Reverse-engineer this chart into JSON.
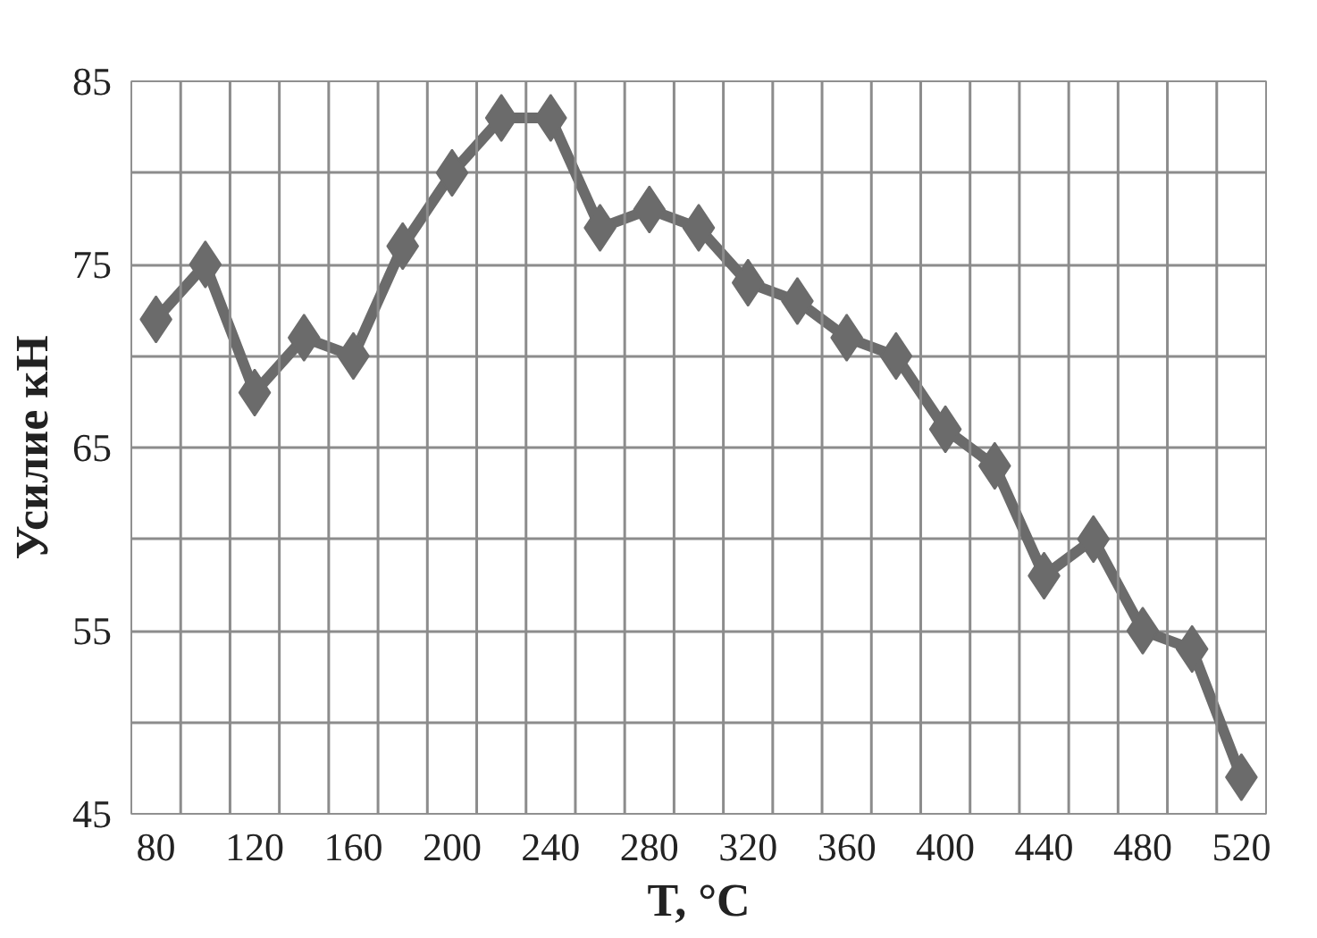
{
  "chart_data": {
    "type": "line",
    "xlabel": "T, °C",
    "ylabel": "Усилие кН",
    "categories": [
      "80",
      null,
      "120",
      null,
      "160",
      null,
      "200",
      null,
      "240",
      null,
      "280",
      null,
      "320",
      null,
      "360",
      null,
      "400",
      null,
      "440",
      null,
      "480",
      null,
      "520"
    ],
    "series": [
      {
        "color": "#6b6b6b",
        "values": [
          72,
          75,
          68,
          71,
          70,
          76,
          80,
          83,
          83,
          77,
          78,
          77,
          74,
          73,
          71,
          70,
          66,
          64,
          58,
          60,
          55,
          54,
          47
        ]
      }
    ],
    "ylim": [
      45,
      85
    ],
    "yticks": [
      45,
      {
        "value": 50,
        "label": null
      },
      55,
      {
        "value": 60,
        "label": null
      },
      65,
      {
        "value": 70,
        "label": null
      },
      75,
      {
        "value": 80,
        "label": null
      },
      85
    ],
    "grid": true,
    "marker": "diamond",
    "line_style": "solid"
  }
}
